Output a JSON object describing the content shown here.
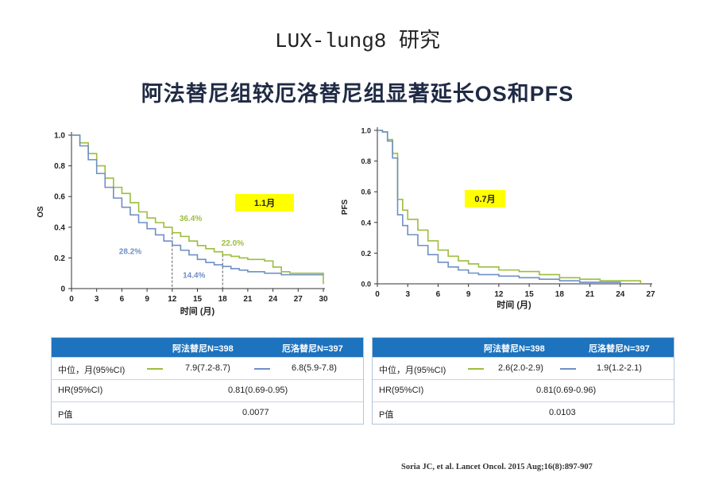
{
  "page": {
    "title_line1": "LUX-lung8 研究",
    "title_line2": "阿法替尼组较厄洛替尼组显著延长OS和PFS",
    "citation": "Soria JC, et al. Lancet Oncol. 2015 Aug;16(8):897-907"
  },
  "colors": {
    "afatinib": "#9cbd3d",
    "erlotinib": "#6f8fc4",
    "header": "#1e73be",
    "highlight": "#ffff00"
  },
  "chart_data": [
    {
      "type": "line",
      "id": "os",
      "ylabel": "OS",
      "xlabel": "时间 (月)",
      "xlim": [
        0,
        30
      ],
      "ylim": [
        0,
        1.0
      ],
      "xticks": [
        "0",
        "3",
        "6",
        "9",
        "12",
        "15",
        "18",
        "21",
        "24",
        "27",
        "30"
      ],
      "yticks": [
        "0",
        "0.2",
        "0.4",
        "0.6",
        "0.8",
        "1.0"
      ],
      "highlight_label": "1.1月",
      "series": [
        {
          "name": "阿法替尼",
          "color": "#9cbd3d",
          "x": [
            0,
            1,
            2,
            3,
            4,
            5,
            6,
            7,
            8,
            9,
            10,
            11,
            12,
            13,
            14,
            15,
            16,
            17,
            18,
            19,
            20,
            21,
            22,
            23,
            24,
            25,
            26,
            27,
            28,
            29,
            30
          ],
          "y": [
            1.0,
            0.95,
            0.88,
            0.8,
            0.72,
            0.66,
            0.62,
            0.56,
            0.5,
            0.46,
            0.43,
            0.4,
            0.364,
            0.34,
            0.31,
            0.28,
            0.26,
            0.24,
            0.22,
            0.21,
            0.2,
            0.19,
            0.19,
            0.18,
            0.14,
            0.11,
            0.1,
            0.1,
            0.1,
            0.1,
            0.03
          ]
        },
        {
          "name": "厄洛替尼",
          "color": "#6f8fc4",
          "x": [
            0,
            1,
            2,
            3,
            4,
            5,
            6,
            7,
            8,
            9,
            10,
            11,
            12,
            13,
            14,
            15,
            16,
            17,
            18,
            19,
            20,
            21,
            22,
            23,
            24,
            25,
            26,
            27,
            28,
            29,
            30
          ],
          "y": [
            1.0,
            0.93,
            0.84,
            0.75,
            0.66,
            0.59,
            0.53,
            0.48,
            0.43,
            0.39,
            0.35,
            0.31,
            0.282,
            0.25,
            0.22,
            0.19,
            0.17,
            0.155,
            0.144,
            0.13,
            0.12,
            0.11,
            0.11,
            0.1,
            0.1,
            0.09,
            0.09,
            0.09,
            0.09,
            0.09,
            0.09
          ]
        }
      ],
      "annotations": [
        {
          "text": "36.4%",
          "series": "阿法替尼",
          "x": 14.2,
          "y": 0.44
        },
        {
          "text": "22.0%",
          "series": "阿法替尼",
          "x": 19.2,
          "y": 0.28
        },
        {
          "text": "28.2%",
          "series": "厄洛替尼",
          "x": 7.0,
          "y": 0.225
        },
        {
          "text": "14.4%",
          "series": "厄洛替尼",
          "x": 14.6,
          "y": 0.07
        }
      ],
      "reference_x": [
        12,
        18
      ]
    },
    {
      "type": "line",
      "id": "pfs",
      "ylabel": "PFS",
      "xlabel": "时间 (月)",
      "xlim": [
        0,
        27
      ],
      "ylim": [
        0,
        1.0
      ],
      "xticks": [
        "0",
        "3",
        "6",
        "9",
        "12",
        "15",
        "18",
        "21",
        "24",
        "27"
      ],
      "yticks": [
        "0.0",
        "0.2",
        "0.4",
        "0.6",
        "0.8",
        "1.0"
      ],
      "highlight_label": "0.7月",
      "series": [
        {
          "name": "阿法替尼",
          "color": "#9cbd3d",
          "x": [
            0,
            0.5,
            1,
            1.5,
            2,
            2.5,
            3,
            4,
            5,
            6,
            7,
            8,
            9,
            10,
            12,
            14,
            16,
            18,
            20,
            22,
            24,
            26
          ],
          "y": [
            1.0,
            0.99,
            0.94,
            0.85,
            0.55,
            0.48,
            0.42,
            0.35,
            0.28,
            0.22,
            0.18,
            0.15,
            0.13,
            0.11,
            0.09,
            0.08,
            0.06,
            0.04,
            0.03,
            0.02,
            0.02,
            0.0
          ]
        },
        {
          "name": "厄洛替尼",
          "color": "#6f8fc4",
          "x": [
            0,
            0.5,
            1,
            1.5,
            2,
            2.5,
            3,
            4,
            5,
            6,
            7,
            8,
            9,
            10,
            12,
            14,
            16,
            18,
            20,
            22,
            24
          ],
          "y": [
            1.0,
            0.99,
            0.93,
            0.82,
            0.45,
            0.38,
            0.32,
            0.25,
            0.19,
            0.14,
            0.11,
            0.09,
            0.07,
            0.06,
            0.05,
            0.04,
            0.03,
            0.02,
            0.01,
            0.01,
            0.0
          ]
        }
      ]
    }
  ],
  "os_table": {
    "col1": "阿法替尼N=398",
    "col2": "厄洛替尼N=397",
    "rows": [
      {
        "label": "中位，月(95%CI)",
        "v1": "7.9(7.2-8.7)",
        "v2": "6.8(5.9-7.8)"
      },
      {
        "label": "HR(95%CI)",
        "value": "0.81(0.69-0.95)"
      },
      {
        "label": "P值",
        "value": "0.0077"
      }
    ]
  },
  "pfs_table": {
    "col1": "阿法替尼N=398",
    "col2": "厄洛替尼N=397",
    "rows": [
      {
        "label": "中位，月(95%CI)",
        "v1": "2.6(2.0-2.9)",
        "v2": "1.9(1.2-2.1)"
      },
      {
        "label": "HR(95%CI)",
        "value": "0.81(0.69-0.96)"
      },
      {
        "label": "P值",
        "value": "0.0103"
      }
    ]
  }
}
